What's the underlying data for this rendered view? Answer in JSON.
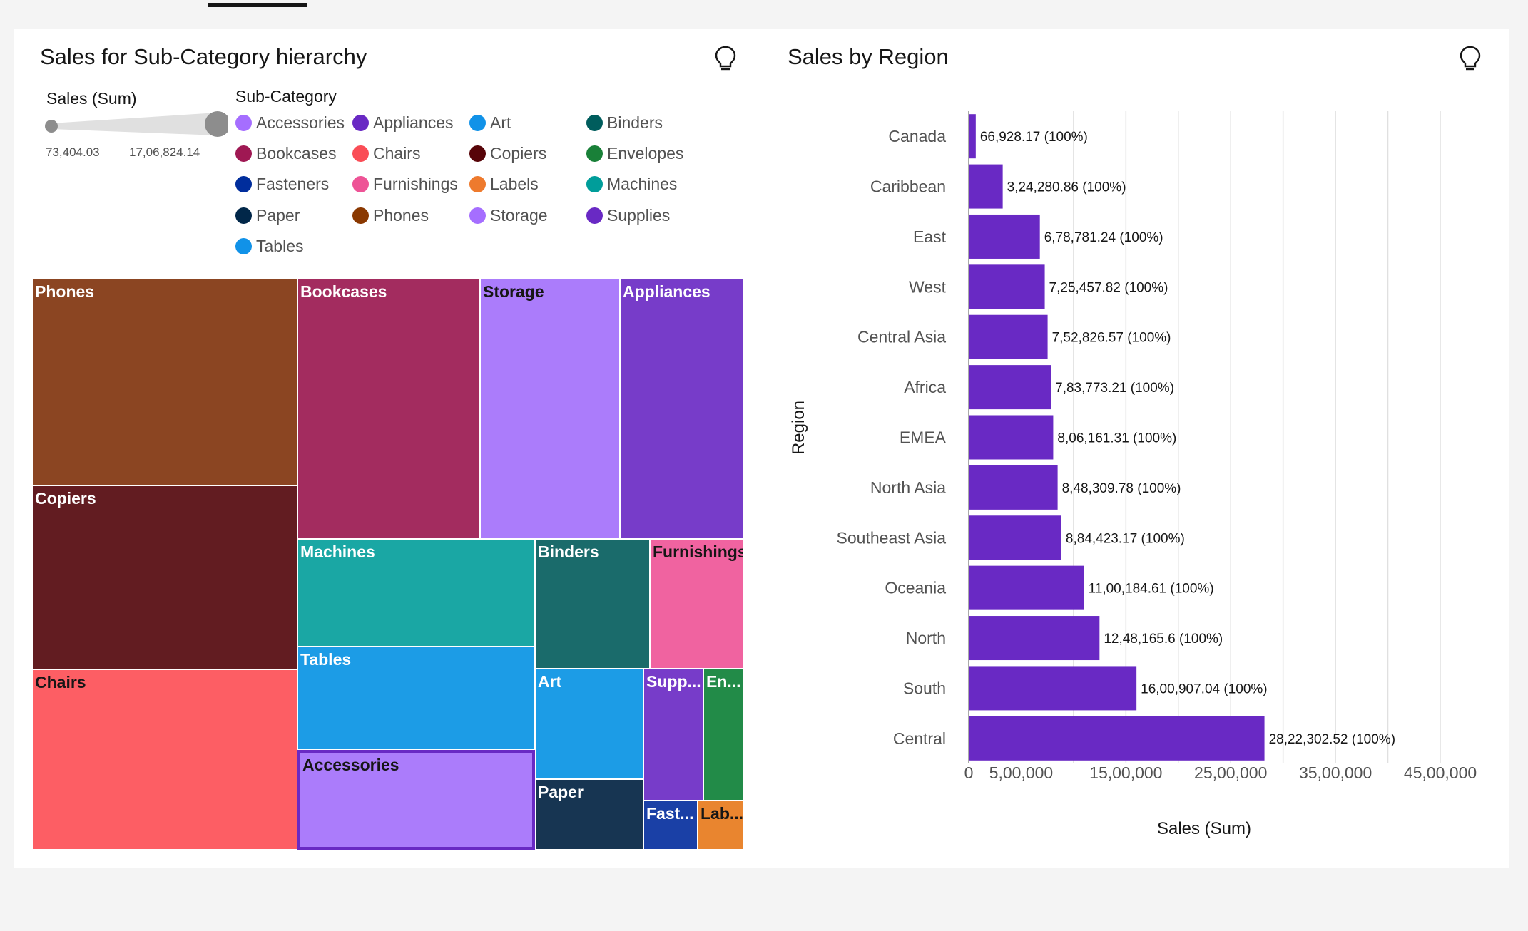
{
  "treemap_panel": {
    "title": "Sales for Sub-Category hierarchy",
    "size_legend_title": "Sales (Sum)",
    "size_min_label": "73,404.03",
    "size_max_label": "17,06,824.14",
    "color_legend_title": "Sub-Category",
    "legend": [
      {
        "label": "Accessories",
        "color": "#a56eff"
      },
      {
        "label": "Appliances",
        "color": "#6929c4"
      },
      {
        "label": "Art",
        "color": "#1192e8"
      },
      {
        "label": "Binders",
        "color": "#005d5d"
      },
      {
        "label": "Bookcases",
        "color": "#9f1853"
      },
      {
        "label": "Chairs",
        "color": "#fa4d56"
      },
      {
        "label": "Copiers",
        "color": "#570408"
      },
      {
        "label": "Envelopes",
        "color": "#198038"
      },
      {
        "label": "Fasteners",
        "color": "#002d9c"
      },
      {
        "label": "Furnishings",
        "color": "#ee5396"
      },
      {
        "label": "Labels",
        "color": "#ee7a2d"
      },
      {
        "label": "Machines",
        "color": "#009d9a"
      },
      {
        "label": "Paper",
        "color": "#012749"
      },
      {
        "label": "Phones",
        "color": "#8a3800"
      },
      {
        "label": "Storage",
        "color": "#a56eff"
      },
      {
        "label": "Supplies",
        "color": "#6929c4"
      },
      {
        "label": "Tables",
        "color": "#1192e8"
      }
    ]
  },
  "bar_panel": {
    "title": "Sales by Region"
  },
  "chart_data": [
    {
      "type": "treemap",
      "title": "Sales for Sub-Category hierarchy",
      "tiles": [
        {
          "label": "Phones",
          "color": "#8b4522",
          "text_color": "#ffffff"
        },
        {
          "label": "Copiers",
          "color": "#621c21",
          "text_color": "#ffffff"
        },
        {
          "label": "Chairs",
          "color": "#fd5e64",
          "text_color": "#161616"
        },
        {
          "label": "Bookcases",
          "color": "#a32c5f",
          "text_color": "#ffffff"
        },
        {
          "label": "Storage",
          "color": "#ab7cfb",
          "text_color": "#161616"
        },
        {
          "label": "Appliances",
          "color": "#773cc9",
          "text_color": "#ffffff"
        },
        {
          "label": "Machines",
          "color": "#1aa7a4",
          "text_color": "#ffffff"
        },
        {
          "label": "Binders",
          "color": "#1a6b6b",
          "text_color": "#ffffff"
        },
        {
          "label": "Furnishings",
          "color": "#f063a0",
          "text_color": "#161616"
        },
        {
          "label": "Tables",
          "color": "#1c9ce6",
          "text_color": "#ffffff"
        },
        {
          "label": "Accessories",
          "color": "#ab7cfb",
          "text_color": "#161616",
          "selected": true
        },
        {
          "label": "Art",
          "color": "#1c9ce6",
          "text_color": "#ffffff"
        },
        {
          "label": "Supp...",
          "color": "#773cc9",
          "text_color": "#ffffff"
        },
        {
          "label": "En...",
          "color": "#228b48",
          "text_color": "#ffffff"
        },
        {
          "label": "Paper",
          "color": "#173552",
          "text_color": "#ffffff"
        },
        {
          "label": "Fast...",
          "color": "#1a40a6",
          "text_color": "#ffffff"
        },
        {
          "label": "Lab...",
          "color": "#e9852f",
          "text_color": "#161616"
        }
      ]
    },
    {
      "type": "bar",
      "orientation": "horizontal",
      "title": "Sales by Region",
      "xlabel": "Sales (Sum)",
      "ylabel": "Region",
      "xlim": [
        0,
        4500000
      ],
      "bar_color": "#6929c4",
      "x_ticks": [
        0,
        500000,
        1500000,
        2500000,
        3500000,
        4500000
      ],
      "x_tick_labels": [
        "0",
        "5,00,000",
        "15,00,000",
        "25,00,000",
        "35,00,000",
        "45,00,000"
      ],
      "grid": true,
      "categories": [
        "Canada",
        "Caribbean",
        "East",
        "West",
        "Central Asia",
        "Africa",
        "EMEA",
        "North Asia",
        "Southeast Asia",
        "Oceania",
        "North",
        "South",
        "Central"
      ],
      "values": [
        66928.17,
        324280.86,
        678781.24,
        725457.82,
        752826.57,
        783773.21,
        806161.31,
        848309.78,
        884423.17,
        1100184.61,
        1248165.6,
        1600907.04,
        2822302.52
      ],
      "data_labels": [
        "66,928.17 (100%)",
        "3,24,280.86 (100%)",
        "6,78,781.24 (100%)",
        "7,25,457.82 (100%)",
        "7,52,826.57 (100%)",
        "7,83,773.21 (100%)",
        "8,06,161.31 (100%)",
        "8,48,309.78 (100%)",
        "8,84,423.17 (100%)",
        "11,00,184.61 (100%)",
        "12,48,165.6 (100%)",
        "16,00,907.04 (100%)",
        "28,22,302.52 (100%)"
      ]
    }
  ]
}
